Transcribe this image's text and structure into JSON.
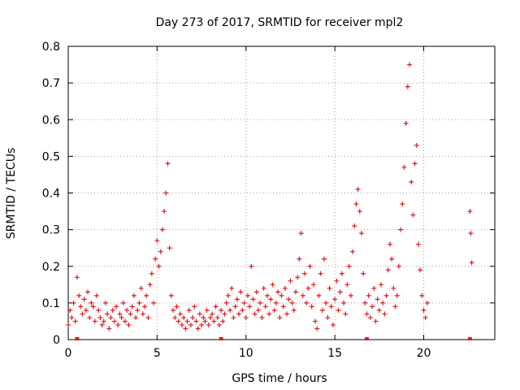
{
  "chart_data": {
    "type": "scatter",
    "title": "Day 273 of 2017, SRMTID for receiver mpl2",
    "xlabel": "GPS time / hours",
    "ylabel": "SRMTID / TECUs",
    "xlim": [
      0,
      24
    ],
    "ylim": [
      0,
      0.8
    ],
    "xticks": [
      0,
      5,
      10,
      15,
      20
    ],
    "yticks": [
      0,
      0.1,
      0.2,
      0.3,
      0.4,
      0.5,
      0.6,
      0.7,
      0.8
    ],
    "xtick_labels": [
      "0",
      "5",
      "10",
      "15",
      "20"
    ],
    "ytick_labels": [
      "0",
      "0.1",
      "0.2",
      "0.3",
      "0.4",
      "0.5",
      "0.6",
      "0.7",
      "0.8"
    ],
    "grid": true,
    "marker": "plus",
    "color": "#e0191b",
    "gap_marker_x": [
      0.5,
      8.6,
      16.8,
      22.6
    ],
    "series": [
      {
        "name": "SRMTID",
        "x": [
          0.0,
          0.1,
          0.2,
          0.3,
          0.4,
          0.5,
          0.6,
          0.7,
          0.8,
          0.9,
          1.0,
          1.1,
          1.2,
          1.3,
          1.4,
          1.5,
          1.6,
          1.7,
          1.8,
          1.9,
          2.0,
          2.1,
          2.2,
          2.3,
          2.4,
          2.5,
          2.6,
          2.7,
          2.8,
          2.9,
          3.0,
          3.1,
          3.2,
          3.3,
          3.4,
          3.5,
          3.6,
          3.7,
          3.8,
          3.9,
          4.0,
          4.1,
          4.2,
          4.3,
          4.4,
          4.5,
          4.6,
          4.7,
          4.8,
          4.9,
          5.0,
          5.1,
          5.2,
          5.3,
          5.4,
          5.5,
          5.6,
          5.7,
          5.8,
          5.9,
          6.0,
          6.1,
          6.2,
          6.3,
          6.4,
          6.5,
          6.6,
          6.7,
          6.8,
          6.9,
          7.0,
          7.1,
          7.2,
          7.3,
          7.4,
          7.5,
          7.6,
          7.7,
          7.8,
          7.9,
          8.0,
          8.1,
          8.2,
          8.3,
          8.4,
          8.5,
          8.6,
          8.7,
          8.8,
          8.9,
          9.0,
          9.1,
          9.2,
          9.3,
          9.4,
          9.5,
          9.6,
          9.7,
          9.8,
          9.9,
          10.0,
          10.1,
          10.2,
          10.3,
          10.4,
          10.5,
          10.6,
          10.7,
          10.8,
          10.9,
          11.0,
          11.1,
          11.2,
          11.3,
          11.4,
          11.5,
          11.6,
          11.7,
          11.8,
          11.9,
          12.0,
          12.1,
          12.2,
          12.3,
          12.4,
          12.5,
          12.6,
          12.7,
          12.8,
          12.9,
          13.0,
          13.1,
          13.2,
          13.3,
          13.4,
          13.5,
          13.6,
          13.7,
          13.8,
          13.9,
          14.0,
          14.1,
          14.2,
          14.3,
          14.4,
          14.5,
          14.6,
          14.7,
          14.8,
          14.9,
          15.0,
          15.1,
          15.2,
          15.3,
          15.4,
          15.5,
          15.6,
          15.7,
          15.8,
          15.9,
          16.0,
          16.1,
          16.2,
          16.3,
          16.4,
          16.5,
          16.6,
          16.7,
          16.8,
          16.9,
          17.0,
          17.1,
          17.2,
          17.3,
          17.4,
          17.5,
          17.6,
          17.7,
          17.8,
          17.9,
          18.0,
          18.1,
          18.2,
          18.3,
          18.4,
          18.5,
          18.6,
          18.7,
          18.8,
          18.9,
          19.0,
          19.1,
          19.2,
          19.3,
          19.4,
          19.5,
          19.6,
          19.7,
          19.8,
          19.9,
          20.0,
          20.1,
          20.2,
          22.6,
          22.65,
          22.7
        ],
        "y": [
          0.04,
          0.08,
          0.06,
          0.1,
          0.05,
          0.17,
          0.12,
          0.09,
          0.07,
          0.11,
          0.08,
          0.13,
          0.06,
          0.1,
          0.09,
          0.05,
          0.12,
          0.08,
          0.06,
          0.04,
          0.05,
          0.1,
          0.07,
          0.03,
          0.06,
          0.08,
          0.05,
          0.09,
          0.04,
          0.07,
          0.06,
          0.1,
          0.05,
          0.08,
          0.04,
          0.07,
          0.09,
          0.12,
          0.06,
          0.08,
          0.1,
          0.14,
          0.07,
          0.09,
          0.12,
          0.06,
          0.15,
          0.18,
          0.1,
          0.22,
          0.27,
          0.2,
          0.24,
          0.3,
          0.35,
          0.4,
          0.48,
          0.25,
          0.12,
          0.08,
          0.06,
          0.09,
          0.05,
          0.07,
          0.04,
          0.06,
          0.03,
          0.05,
          0.08,
          0.04,
          0.06,
          0.09,
          0.05,
          0.03,
          0.07,
          0.04,
          0.06,
          0.05,
          0.08,
          0.04,
          0.06,
          0.07,
          0.05,
          0.09,
          0.06,
          0.04,
          0.08,
          0.05,
          0.07,
          0.1,
          0.12,
          0.08,
          0.14,
          0.06,
          0.09,
          0.11,
          0.07,
          0.13,
          0.08,
          0.1,
          0.06,
          0.12,
          0.09,
          0.2,
          0.11,
          0.07,
          0.13,
          0.08,
          0.1,
          0.06,
          0.14,
          0.09,
          0.12,
          0.07,
          0.11,
          0.15,
          0.08,
          0.1,
          0.13,
          0.06,
          0.12,
          0.09,
          0.14,
          0.07,
          0.11,
          0.16,
          0.1,
          0.08,
          0.13,
          0.17,
          0.22,
          0.29,
          0.12,
          0.18,
          0.1,
          0.14,
          0.2,
          0.09,
          0.15,
          0.05,
          0.03,
          0.12,
          0.18,
          0.08,
          0.22,
          0.1,
          0.06,
          0.14,
          0.09,
          0.04,
          0.11,
          0.16,
          0.08,
          0.13,
          0.18,
          0.1,
          0.07,
          0.15,
          0.2,
          0.12,
          0.24,
          0.31,
          0.37,
          0.41,
          0.35,
          0.29,
          0.18,
          0.1,
          0.07,
          0.12,
          0.06,
          0.09,
          0.14,
          0.05,
          0.11,
          0.08,
          0.15,
          0.1,
          0.07,
          0.12,
          0.19,
          0.26,
          0.22,
          0.14,
          0.09,
          0.12,
          0.2,
          0.3,
          0.37,
          0.47,
          0.59,
          0.69,
          0.75,
          0.43,
          0.34,
          0.48,
          0.53,
          0.26,
          0.19,
          0.12,
          0.08,
          0.06,
          0.1,
          0.35,
          0.29,
          0.21
        ]
      }
    ]
  }
}
